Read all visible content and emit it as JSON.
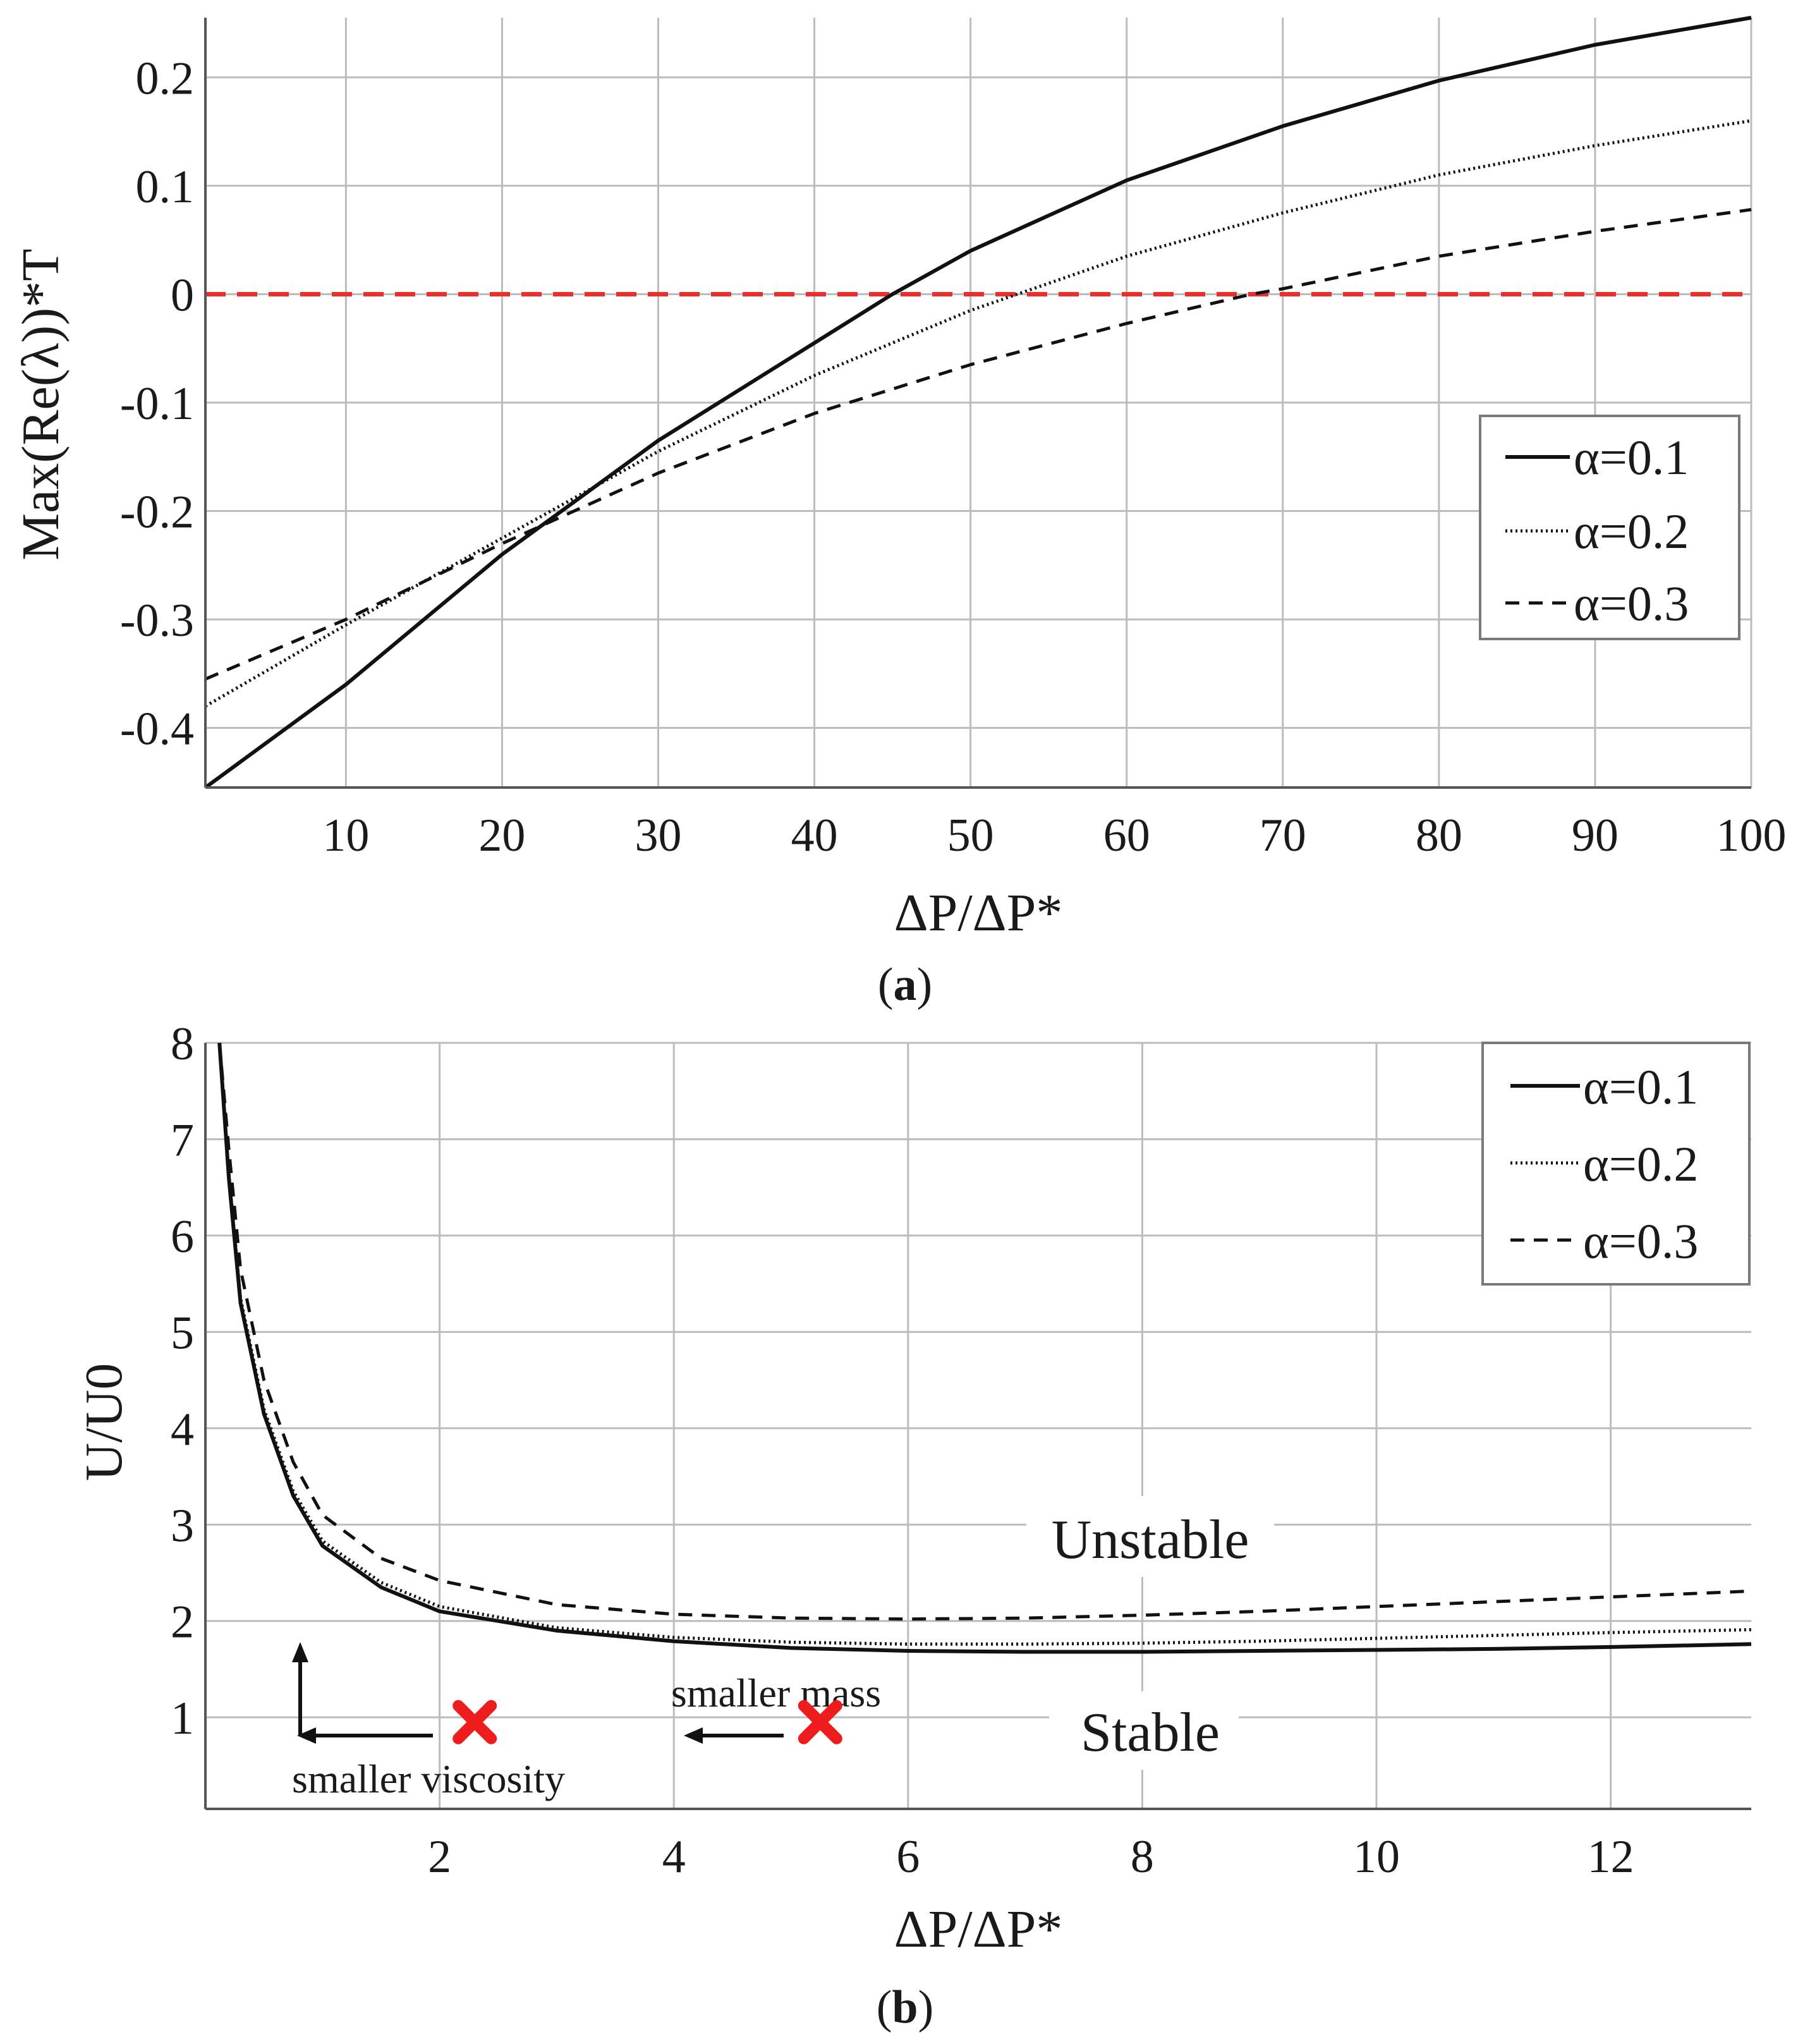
{
  "chart_data": [
    {
      "type": "line",
      "panel": "a",
      "caption_letter": "a",
      "xlabel": "ΔP/ΔP*",
      "ylabel": "Max(Re(λ))*T",
      "xlim": [
        1,
        100
      ],
      "ylim": [
        -0.455,
        0.255
      ],
      "xticks": [
        10,
        20,
        30,
        40,
        50,
        60,
        70,
        80,
        90,
        100
      ],
      "xtick_labels": [
        "10",
        "20",
        "30",
        "40",
        "50",
        "60",
        "70",
        "80",
        "90",
        "100"
      ],
      "yticks": [
        -0.4,
        -0.3,
        -0.2,
        -0.1,
        0,
        0.1,
        0.2
      ],
      "ytick_labels": [
        "-0.4",
        "-0.3",
        "-0.2",
        "-0.1",
        "0",
        "0.1",
        "0.2"
      ],
      "grid": true,
      "legend_position": "right",
      "reference_line": {
        "y": 0,
        "color": "#e8302c",
        "style": "dashed"
      },
      "series": [
        {
          "name": "α=0.1",
          "style": "solid",
          "x": [
            1,
            10,
            20,
            30,
            40,
            45,
            50,
            60,
            70,
            80,
            90,
            100
          ],
          "y": [
            -0.455,
            -0.36,
            -0.24,
            -0.135,
            -0.045,
            0.0,
            0.04,
            0.105,
            0.155,
            0.197,
            0.23,
            0.255
          ]
        },
        {
          "name": "α=0.2",
          "style": "dotted",
          "x": [
            1,
            10,
            20,
            30,
            40,
            50,
            53,
            60,
            70,
            80,
            90,
            100
          ],
          "y": [
            -0.38,
            -0.305,
            -0.225,
            -0.145,
            -0.075,
            -0.015,
            0.0,
            0.035,
            0.075,
            0.11,
            0.137,
            0.16
          ]
        },
        {
          "name": "α=0.3",
          "style": "dashed",
          "x": [
            1,
            10,
            20,
            30,
            40,
            50,
            60,
            68,
            70,
            80,
            90,
            100
          ],
          "y": [
            -0.355,
            -0.3,
            -0.23,
            -0.165,
            -0.11,
            -0.065,
            -0.027,
            0.0,
            0.005,
            0.035,
            0.058,
            0.078
          ]
        }
      ]
    },
    {
      "type": "line",
      "panel": "b",
      "caption_letter": "b",
      "xlabel": "ΔP/ΔP*",
      "ylabel": "U/U0",
      "xlim": [
        0,
        13.2
      ],
      "ylim": [
        0.05,
        8
      ],
      "xticks": [
        2,
        4,
        6,
        8,
        10,
        12
      ],
      "xtick_labels": [
        "2",
        "4",
        "6",
        "8",
        "10",
        "12"
      ],
      "yticks": [
        1,
        2,
        3,
        4,
        5,
        6,
        7,
        8
      ],
      "ytick_labels": [
        "1",
        "2",
        "3",
        "4",
        "5",
        "6",
        "7",
        "8"
      ],
      "grid": true,
      "legend_position": "top-right",
      "series": [
        {
          "name": "α=0.1",
          "style": "solid",
          "x": [
            0.12,
            0.2,
            0.3,
            0.5,
            0.75,
            1,
            1.5,
            2,
            3,
            4,
            5,
            6,
            7,
            8,
            9,
            10,
            11,
            12,
            13.2
          ],
          "y": [
            8.0,
            6.6,
            5.3,
            4.15,
            3.3,
            2.78,
            2.35,
            2.1,
            1.9,
            1.79,
            1.72,
            1.69,
            1.68,
            1.68,
            1.69,
            1.7,
            1.71,
            1.73,
            1.76
          ]
        },
        {
          "name": "α=0.2",
          "style": "dotted",
          "x": [
            0.12,
            0.2,
            0.3,
            0.5,
            0.75,
            1,
            1.5,
            2,
            3,
            4,
            5,
            6,
            7,
            8,
            9,
            10,
            11,
            12,
            13.2
          ],
          "y": [
            8.0,
            6.65,
            5.35,
            4.2,
            3.35,
            2.83,
            2.4,
            2.15,
            1.93,
            1.83,
            1.78,
            1.76,
            1.76,
            1.77,
            1.79,
            1.82,
            1.85,
            1.88,
            1.91
          ]
        },
        {
          "name": "α=0.3",
          "style": "dashed",
          "x": [
            0.12,
            0.2,
            0.3,
            0.5,
            0.75,
            1,
            1.5,
            2,
            3,
            4,
            5,
            6,
            7,
            8,
            9,
            10,
            11,
            12,
            13.2
          ],
          "y": [
            8.0,
            6.9,
            5.65,
            4.5,
            3.65,
            3.1,
            2.65,
            2.42,
            2.17,
            2.07,
            2.03,
            2.02,
            2.03,
            2.06,
            2.1,
            2.15,
            2.2,
            2.25,
            2.31
          ]
        }
      ],
      "regions": {
        "unstable": "Unstable",
        "stable": "Stable"
      },
      "markers": [
        {
          "x": 2.3,
          "y": 0.95,
          "color": "#ee1c1c",
          "label": "smaller viscosity"
        },
        {
          "x": 5.25,
          "y": 0.95,
          "color": "#ee1c1c",
          "label": "smaller mass"
        }
      ]
    }
  ]
}
